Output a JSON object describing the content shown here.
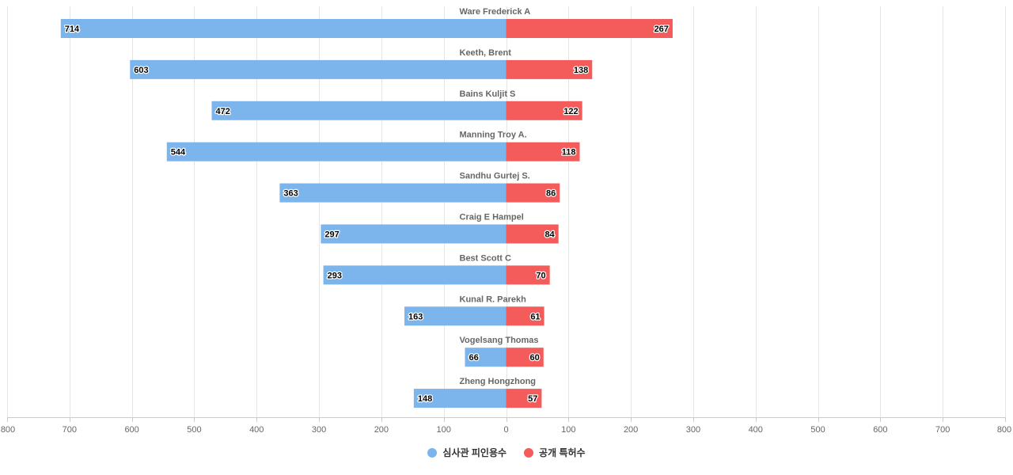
{
  "colors": {
    "left_series": "#7cb5ec",
    "right_series": "#f45b5b"
  },
  "chart_data": {
    "type": "bar",
    "orientation": "horizontal-butterfly",
    "categories": [
      "Ware Frederick A",
      "Keeth, Brent",
      "Bains Kuljit S",
      "Manning Troy A.",
      "Sandhu Gurtej S.",
      "Craig E Hampel",
      "Best Scott C",
      "Kunal R. Parekh",
      "Vogelsang Thomas",
      "Zheng Hongzhong"
    ],
    "series": [
      {
        "name": "심사관 피인용수",
        "side": "left",
        "values": [
          714,
          603,
          472,
          544,
          363,
          297,
          293,
          163,
          66,
          148
        ]
      },
      {
        "name": "공개 특허수",
        "side": "right",
        "values": [
          267,
          138,
          122,
          118,
          86,
          84,
          70,
          61,
          60,
          57
        ]
      }
    ],
    "xlim": [
      -800,
      800
    ],
    "xticks": [
      -800,
      -700,
      -600,
      -500,
      -400,
      -300,
      -200,
      -100,
      0,
      100,
      200,
      300,
      400,
      500,
      600,
      700,
      800
    ],
    "tick_labels": [
      "800",
      "700",
      "600",
      "500",
      "400",
      "300",
      "200",
      "100",
      "0",
      "100",
      "200",
      "300",
      "400",
      "500",
      "600",
      "700",
      "800"
    ],
    "grid": true,
    "legend": "bottom-center"
  },
  "legend": {
    "items": [
      {
        "label": "심사관 피인용수"
      },
      {
        "label": "공개 특허수"
      }
    ]
  }
}
